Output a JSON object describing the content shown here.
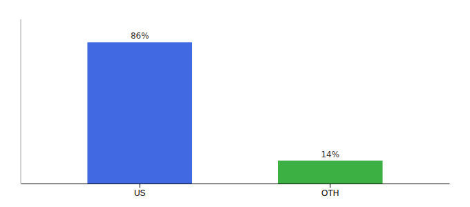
{
  "chart_data": {
    "type": "bar",
    "categories": [
      "US",
      "OTH"
    ],
    "values": [
      86,
      14
    ],
    "value_labels": [
      "86%",
      "14%"
    ],
    "colors": [
      "#4169e1",
      "#3cb043"
    ],
    "ylim": [
      0,
      100
    ],
    "data_labels": true,
    "tick_labels": "x"
  }
}
